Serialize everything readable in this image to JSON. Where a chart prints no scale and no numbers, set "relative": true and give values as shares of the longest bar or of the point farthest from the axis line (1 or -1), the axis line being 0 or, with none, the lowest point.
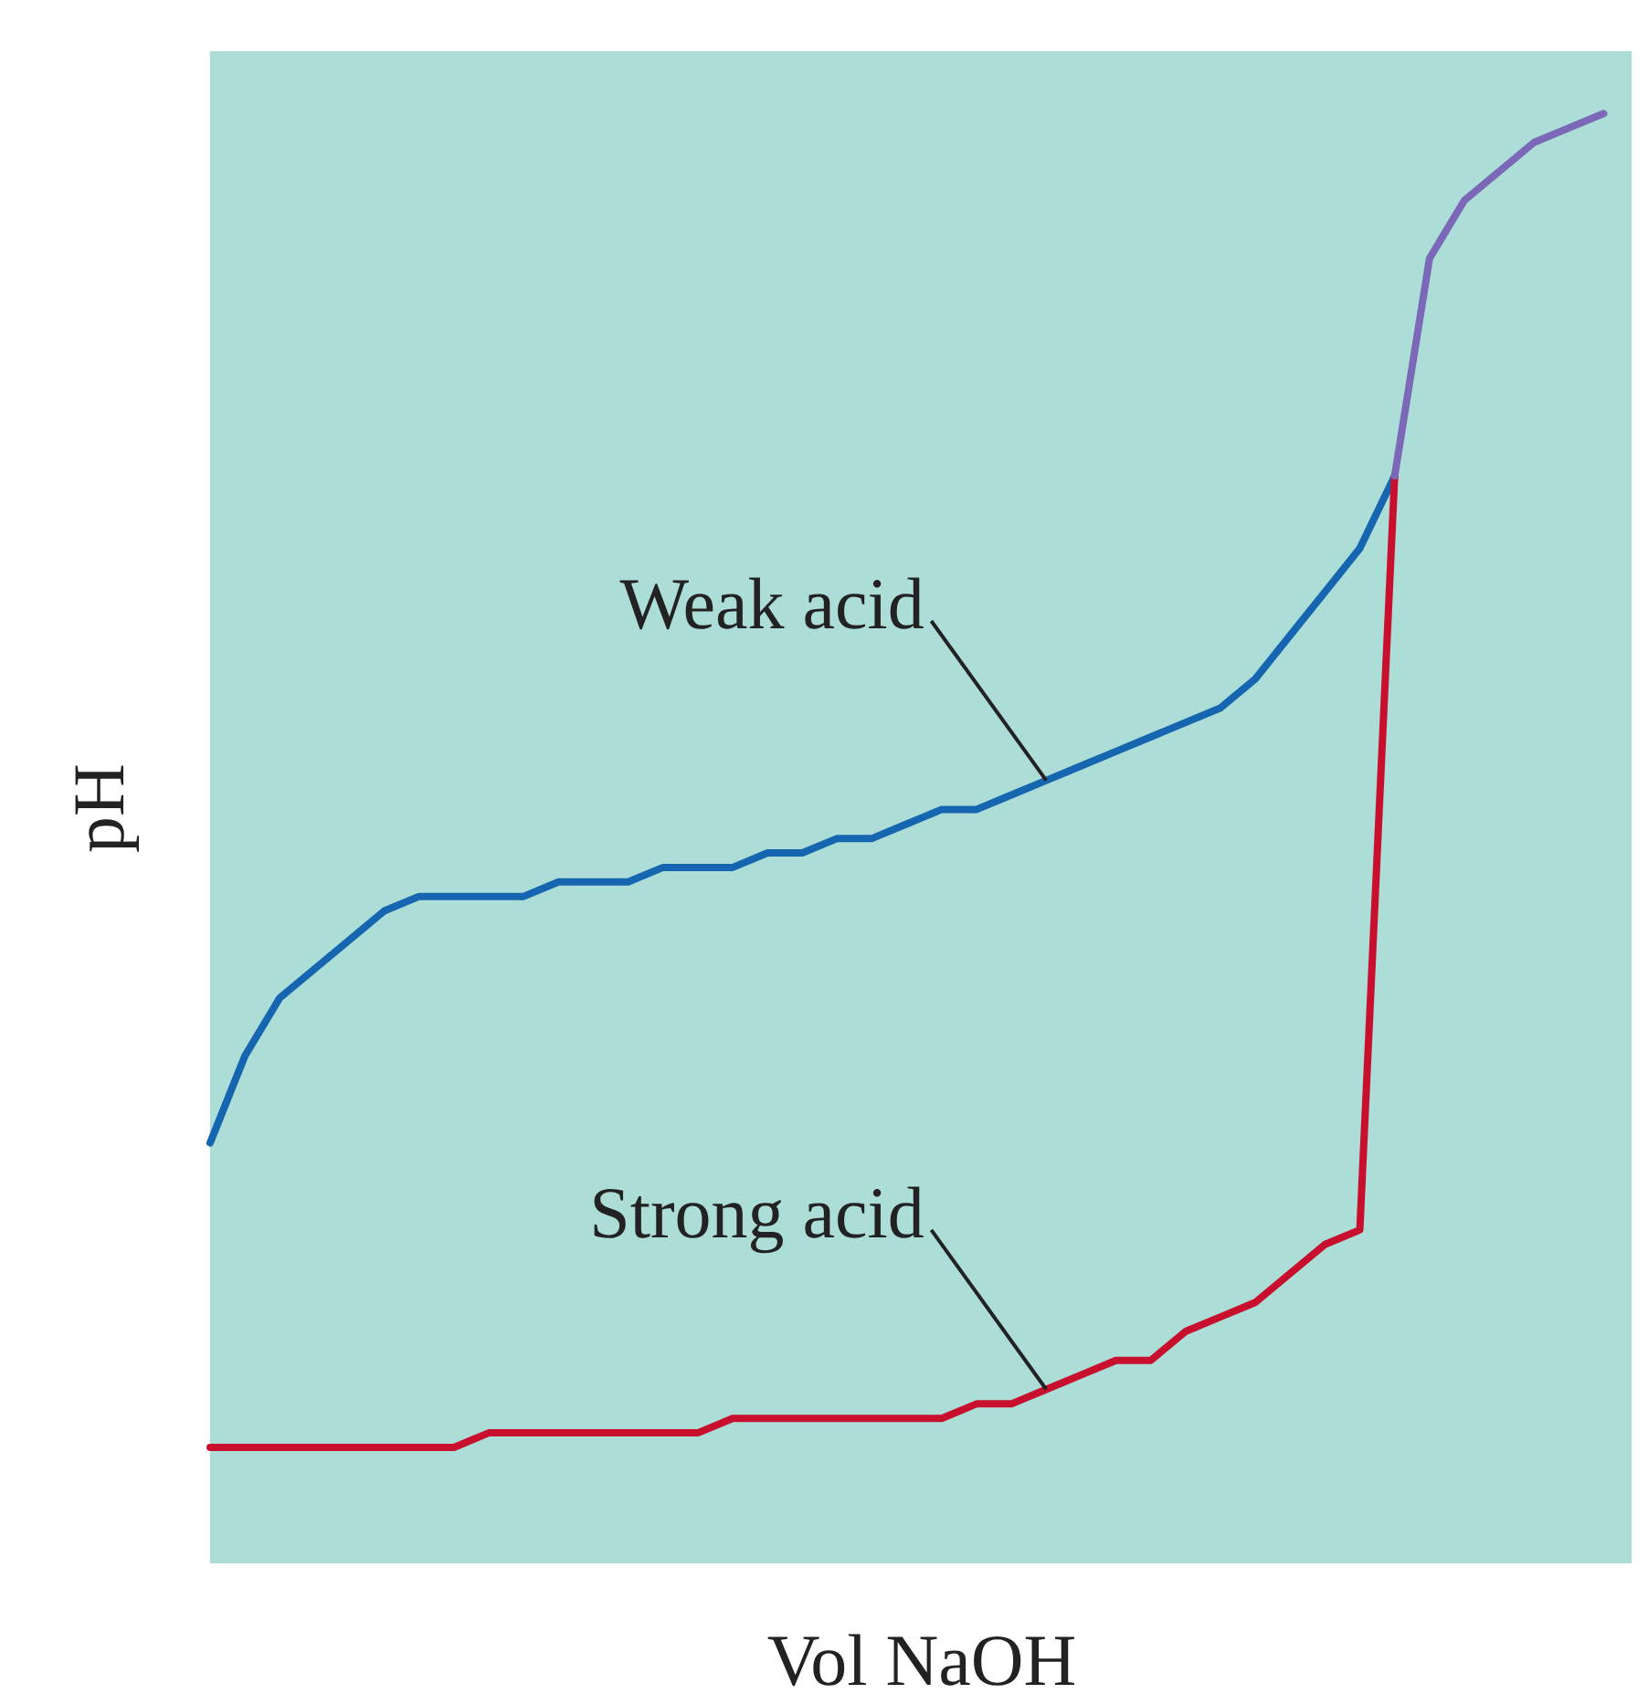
{
  "chart_data": {
    "type": "line",
    "relative": true,
    "xlabel": "Vol NaOH",
    "ylabel": "pH",
    "categories": [
      null,
      null,
      null,
      null,
      null,
      null,
      null,
      null,
      null,
      null,
      null,
      null,
      null,
      null,
      null,
      null,
      null,
      null,
      null,
      null,
      null,
      null,
      null,
      null,
      null,
      null,
      null,
      null,
      null,
      null,
      null,
      null,
      null,
      null,
      null,
      null,
      null,
      null,
      null,
      null,
      null
    ],
    "series": [
      {
        "name": "Weak acid",
        "color": "#1565b0",
        "values": [
          0.29,
          0.35,
          0.39,
          0.41,
          0.43,
          0.45,
          0.46,
          0.46,
          0.46,
          0.46,
          0.47,
          0.47,
          0.47,
          0.48,
          0.48,
          0.48,
          0.49,
          0.49,
          0.5,
          0.5,
          0.51,
          0.52,
          0.52,
          0.53,
          0.54,
          0.55,
          0.56,
          0.57,
          0.58,
          0.59,
          0.61,
          0.64,
          0.67,
          0.7,
          0.75,
          null,
          null,
          null,
          null,
          null,
          null
        ]
      },
      {
        "name": "Strong acid",
        "color": "#c8102e",
        "values": [
          0.08,
          0.08,
          0.08,
          0.08,
          0.08,
          0.08,
          0.08,
          0.08,
          0.09,
          0.09,
          0.09,
          0.09,
          0.09,
          0.09,
          0.09,
          0.1,
          0.1,
          0.1,
          0.1,
          0.1,
          0.1,
          0.1,
          0.11,
          0.11,
          0.12,
          0.13,
          0.14,
          0.14,
          0.16,
          0.17,
          0.18,
          0.2,
          0.22,
          0.23,
          0.75,
          null,
          null,
          null,
          null,
          null,
          null
        ]
      },
      {
        "color": "#7b68b8",
        "values": [
          null,
          null,
          null,
          null,
          null,
          null,
          null,
          null,
          null,
          null,
          null,
          null,
          null,
          null,
          null,
          null,
          null,
          null,
          null,
          null,
          null,
          null,
          null,
          null,
          null,
          null,
          null,
          null,
          null,
          null,
          null,
          null,
          null,
          null,
          0.75,
          0.9,
          0.94,
          0.96,
          0.98,
          0.99,
          1
        ]
      }
    ]
  }
}
